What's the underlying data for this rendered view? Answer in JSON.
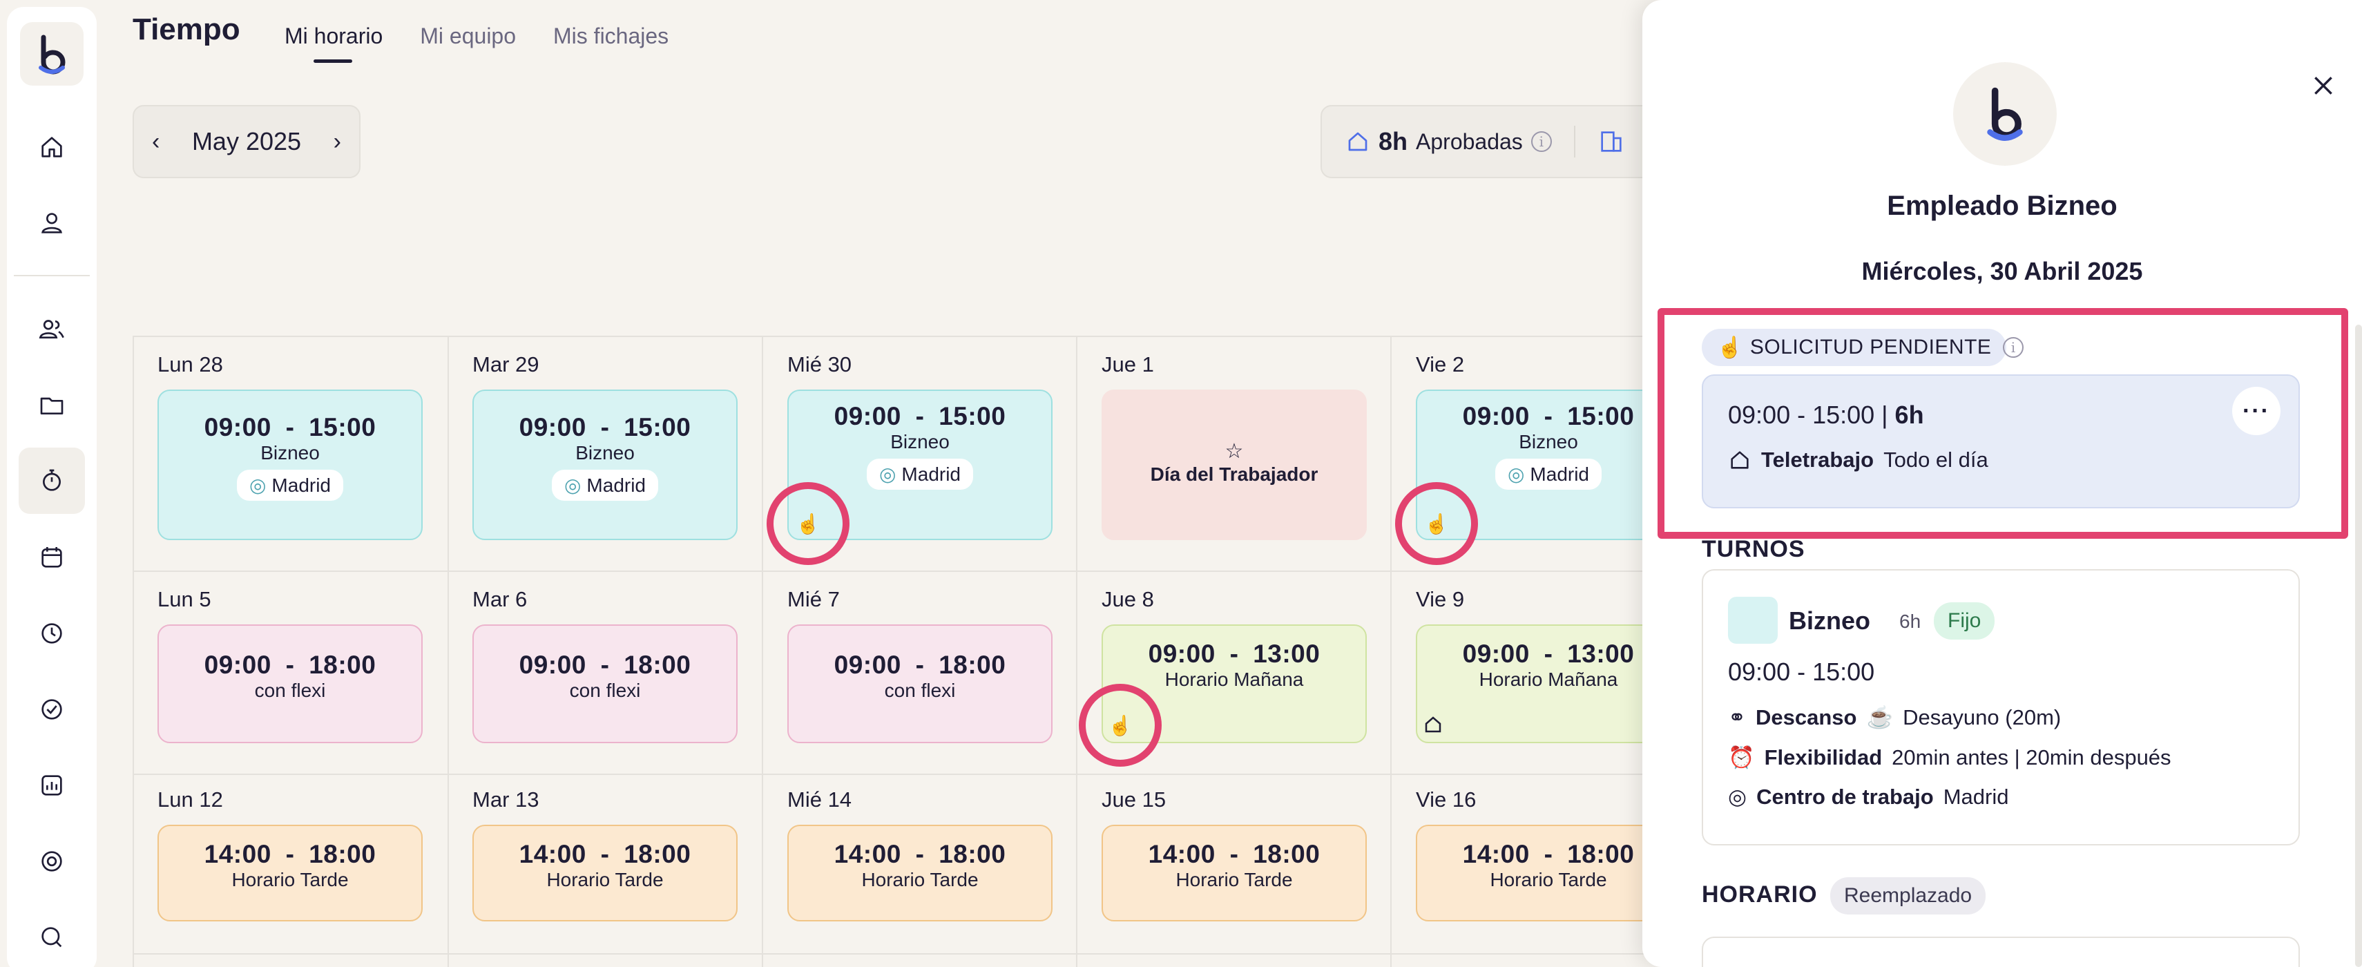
{
  "header": {
    "title": "Tiempo",
    "tabs": [
      {
        "label": "Mi horario",
        "active": true
      },
      {
        "label": "Mi equipo",
        "active": false
      },
      {
        "label": "Mis fichajes",
        "active": false
      }
    ]
  },
  "month_nav": {
    "label": "May 2025"
  },
  "hours_summary": {
    "hours": "8h",
    "label": "Aprobadas"
  },
  "sidebar": {
    "icons": [
      "home-icon",
      "user-icon",
      "team-icon",
      "folder-icon",
      "stopwatch-icon",
      "calendar-icon",
      "clock-chart-icon",
      "check-circle-icon",
      "report-icon",
      "target-icon",
      "search-chat-icon"
    ]
  },
  "calendar": {
    "rows": [
      {
        "days": [
          {
            "label": "Lun 28",
            "type": "shift",
            "color": "teal",
            "start": "09:00",
            "end": "15:00",
            "name": "Bizneo",
            "location": "Madrid"
          },
          {
            "label": "Mar 29",
            "type": "shift",
            "color": "teal",
            "start": "09:00",
            "end": "15:00",
            "name": "Bizneo",
            "location": "Madrid"
          },
          {
            "label": "Mié 30",
            "type": "shift",
            "color": "teal",
            "start": "09:00",
            "end": "15:00",
            "name": "Bizneo",
            "location": "Madrid"
          },
          {
            "label": "Jue 1",
            "type": "holiday",
            "name": "Día del Trabajador"
          },
          {
            "label": "Vie 2",
            "type": "shift",
            "color": "teal",
            "start": "09:00",
            "end": "15:00",
            "name": "Bizneo",
            "location": "Madrid"
          }
        ]
      },
      {
        "days": [
          {
            "label": "Lun 5",
            "type": "shift",
            "color": "pink",
            "start": "09:00",
            "end": "18:00",
            "name": "con flexi"
          },
          {
            "label": "Mar 6",
            "type": "shift",
            "color": "pink",
            "start": "09:00",
            "end": "18:00",
            "name": "con flexi"
          },
          {
            "label": "Mié 7",
            "type": "shift",
            "color": "pink",
            "start": "09:00",
            "end": "18:00",
            "name": "con flexi"
          },
          {
            "label": "Jue 8",
            "type": "shift",
            "color": "green",
            "start": "09:00",
            "end": "13:00",
            "name": "Horario Mañana"
          },
          {
            "label": "Vie 9",
            "type": "shift",
            "color": "green",
            "start": "09:00",
            "end": "13:00",
            "name": "Horario Mañana"
          }
        ]
      },
      {
        "days": [
          {
            "label": "Lun 12",
            "type": "shift",
            "color": "peach",
            "start": "14:00",
            "end": "18:00",
            "name": "Horario Tarde"
          },
          {
            "label": "Mar 13",
            "type": "shift",
            "color": "peach",
            "start": "14:00",
            "end": "18:00",
            "name": "Horario Tarde"
          },
          {
            "label": "Mié 14",
            "type": "shift",
            "color": "peach",
            "start": "14:00",
            "end": "18:00",
            "name": "Horario Tarde"
          },
          {
            "label": "Jue 15",
            "type": "shift",
            "color": "peach",
            "start": "14:00",
            "end": "18:00",
            "name": "Horario Tarde"
          },
          {
            "label": "Vie 16",
            "type": "shift",
            "color": "peach",
            "start": "14:00",
            "end": "18:00",
            "name": "Horario Tarde"
          }
        ]
      }
    ],
    "separator": "-"
  },
  "panel": {
    "employee_name": "Empleado Bizneo",
    "date": "Miércoles, 30 Abril 2025",
    "pending_badge": "SOLICITUD PENDIENTE",
    "request": {
      "time_range": "09:00 - 15:00 |",
      "duration": "6h",
      "mode": "Teletrabajo",
      "mode_detail": "Todo el día",
      "more": "···"
    },
    "turnos_title": "TURNOS",
    "turno": {
      "name": "Bizneo",
      "hours": "6h",
      "badge": "Fijo",
      "time_range": "09:00 - 15:00",
      "rows": [
        {
          "label": "Descanso",
          "value": "Desayuno (20m)"
        },
        {
          "label": "Flexibilidad",
          "value": "20min antes | 20min después"
        },
        {
          "label": "Centro de trabajo",
          "value": "Madrid"
        }
      ]
    },
    "horario_title": "HORARIO",
    "horario_badge": "Reemplazado"
  },
  "colors": {
    "accent_ring": "#e2426f",
    "teal": "#d8f3f3",
    "pink": "#f8e6ee",
    "green": "#eef5d7",
    "peach": "#fce9d1",
    "holiday": "#f7e2df"
  }
}
